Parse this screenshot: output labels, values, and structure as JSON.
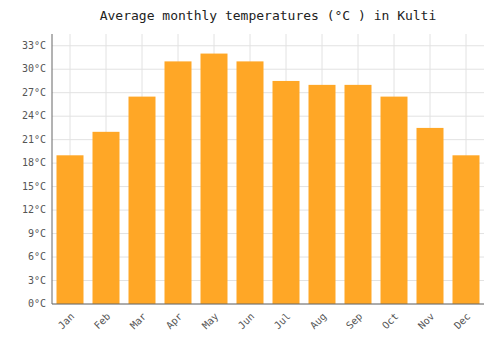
{
  "chart_data": {
    "type": "bar",
    "title": "Average monthly temperatures (°C ) in Kulti",
    "categories": [
      "Jan",
      "Feb",
      "Mar",
      "Apr",
      "May",
      "Jun",
      "Jul",
      "Aug",
      "Sep",
      "Oct",
      "Nov",
      "Dec"
    ],
    "values": [
      19,
      22,
      26.5,
      31,
      32,
      31,
      28.5,
      28,
      28,
      26.5,
      22.5,
      19
    ],
    "color": "#FFA726",
    "ylim": [
      0,
      34.5
    ],
    "yticks": [
      {
        "value": 0,
        "label": "0°C"
      },
      {
        "value": 3,
        "label": "3°C"
      },
      {
        "value": 6,
        "label": "6°C"
      },
      {
        "value": 9,
        "label": "9°C"
      },
      {
        "value": 12,
        "label": "12°C"
      },
      {
        "value": 15,
        "label": "15°C"
      },
      {
        "value": 18,
        "label": "18°C"
      },
      {
        "value": 21,
        "label": "21°C"
      },
      {
        "value": 24,
        "label": "24°C"
      },
      {
        "value": 27,
        "label": "27°C"
      },
      {
        "value": 30,
        "label": "30°C"
      },
      {
        "value": 33,
        "label": "33°C"
      }
    ],
    "grid": true
  }
}
